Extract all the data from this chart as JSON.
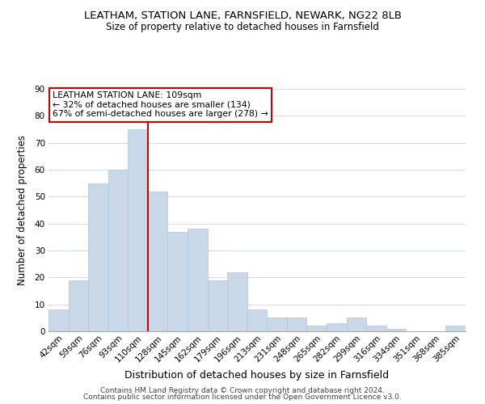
{
  "title": "LEATHAM, STATION LANE, FARNSFIELD, NEWARK, NG22 8LB",
  "subtitle": "Size of property relative to detached houses in Farnsfield",
  "xlabel": "Distribution of detached houses by size in Farnsfield",
  "ylabel": "Number of detached properties",
  "categories": [
    "42sqm",
    "59sqm",
    "76sqm",
    "93sqm",
    "110sqm",
    "128sqm",
    "145sqm",
    "162sqm",
    "179sqm",
    "196sqm",
    "213sqm",
    "231sqm",
    "248sqm",
    "265sqm",
    "282sqm",
    "299sqm",
    "316sqm",
    "334sqm",
    "351sqm",
    "368sqm",
    "385sqm"
  ],
  "values": [
    8,
    19,
    55,
    60,
    75,
    52,
    37,
    38,
    19,
    22,
    8,
    5,
    5,
    2,
    3,
    5,
    2,
    1,
    0,
    0,
    2
  ],
  "bar_color": "#c8d8e8",
  "bar_edge_color": "#b0c8e0",
  "highlight_index": 4,
  "highlight_line_color": "#cc0000",
  "ylim": [
    0,
    90
  ],
  "yticks": [
    0,
    10,
    20,
    30,
    40,
    50,
    60,
    70,
    80,
    90
  ],
  "annotation_title": "LEATHAM STATION LANE: 109sqm",
  "annotation_line1": "← 32% of detached houses are smaller (134)",
  "annotation_line2": "67% of semi-detached houses are larger (278) →",
  "annotation_box_color": "#ffffff",
  "annotation_box_edgecolor": "#cc0000",
  "footer1": "Contains HM Land Registry data © Crown copyright and database right 2024.",
  "footer2": "Contains public sector information licensed under the Open Government Licence v3.0.",
  "background_color": "#ffffff",
  "grid_color": "#d0dce8",
  "title_fontsize": 9.5,
  "subtitle_fontsize": 8.5,
  "xlabel_fontsize": 9,
  "ylabel_fontsize": 8.5,
  "tick_fontsize": 7.5,
  "annotation_fontsize": 7.8,
  "footer_fontsize": 6.5
}
